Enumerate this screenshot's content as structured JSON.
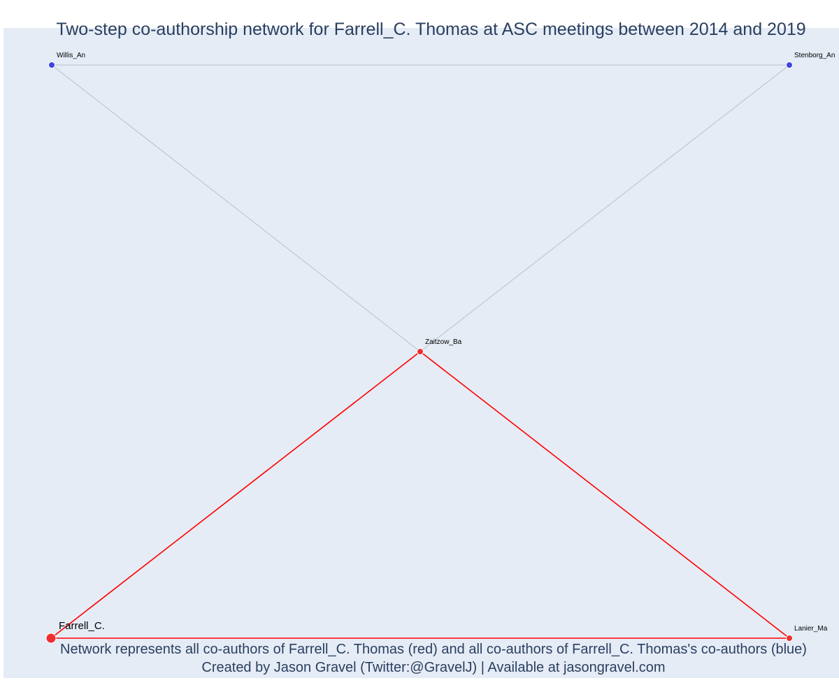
{
  "title": "Two-step co-authorship network for Farrell_C. Thomas at ASC meetings between 2014 and 2019",
  "caption": {
    "line1": "Network represents all co-authors of Farrell_C. Thomas (red) and all co-authors of Farrell_C. Thomas's co-authors (blue)",
    "line2": "Created by Jason Gravel (Twitter:@GravelJ) | Available at jasongravel.com"
  },
  "colors": {
    "background": "#e5ecf6",
    "coauthor": "#ef2f2f",
    "second_step": "#3d46e2",
    "coauthor_edge": "#ff0000",
    "second_step_edge": "#b8bfcf",
    "text": "#2a3f5f"
  },
  "network": {
    "nodes": [
      {
        "id": "Willis_An",
        "label": "Willis_An",
        "group": "second_step"
      },
      {
        "id": "Stenborg_An",
        "label": "Stenborg_An",
        "group": "second_step"
      },
      {
        "id": "Zaitzow_Ba",
        "label": "Zaitzow_Ba",
        "group": "coauthor"
      },
      {
        "id": "Farrell_C.",
        "label": "Farrell_C.",
        "group": "focal"
      },
      {
        "id": "Lanier_Ma",
        "label": "Lanier_Ma",
        "group": "coauthor"
      }
    ],
    "edges": [
      {
        "source": "Willis_An",
        "target": "Stenborg_An",
        "type": "second_step"
      },
      {
        "source": "Willis_An",
        "target": "Zaitzow_Ba",
        "type": "second_step"
      },
      {
        "source": "Stenborg_An",
        "target": "Zaitzow_Ba",
        "type": "second_step"
      },
      {
        "source": "Farrell_C.",
        "target": "Zaitzow_Ba",
        "type": "coauthor"
      },
      {
        "source": "Zaitzow_Ba",
        "target": "Lanier_Ma",
        "type": "coauthor"
      },
      {
        "source": "Farrell_C.",
        "target": "Lanier_Ma",
        "type": "coauthor"
      }
    ]
  }
}
